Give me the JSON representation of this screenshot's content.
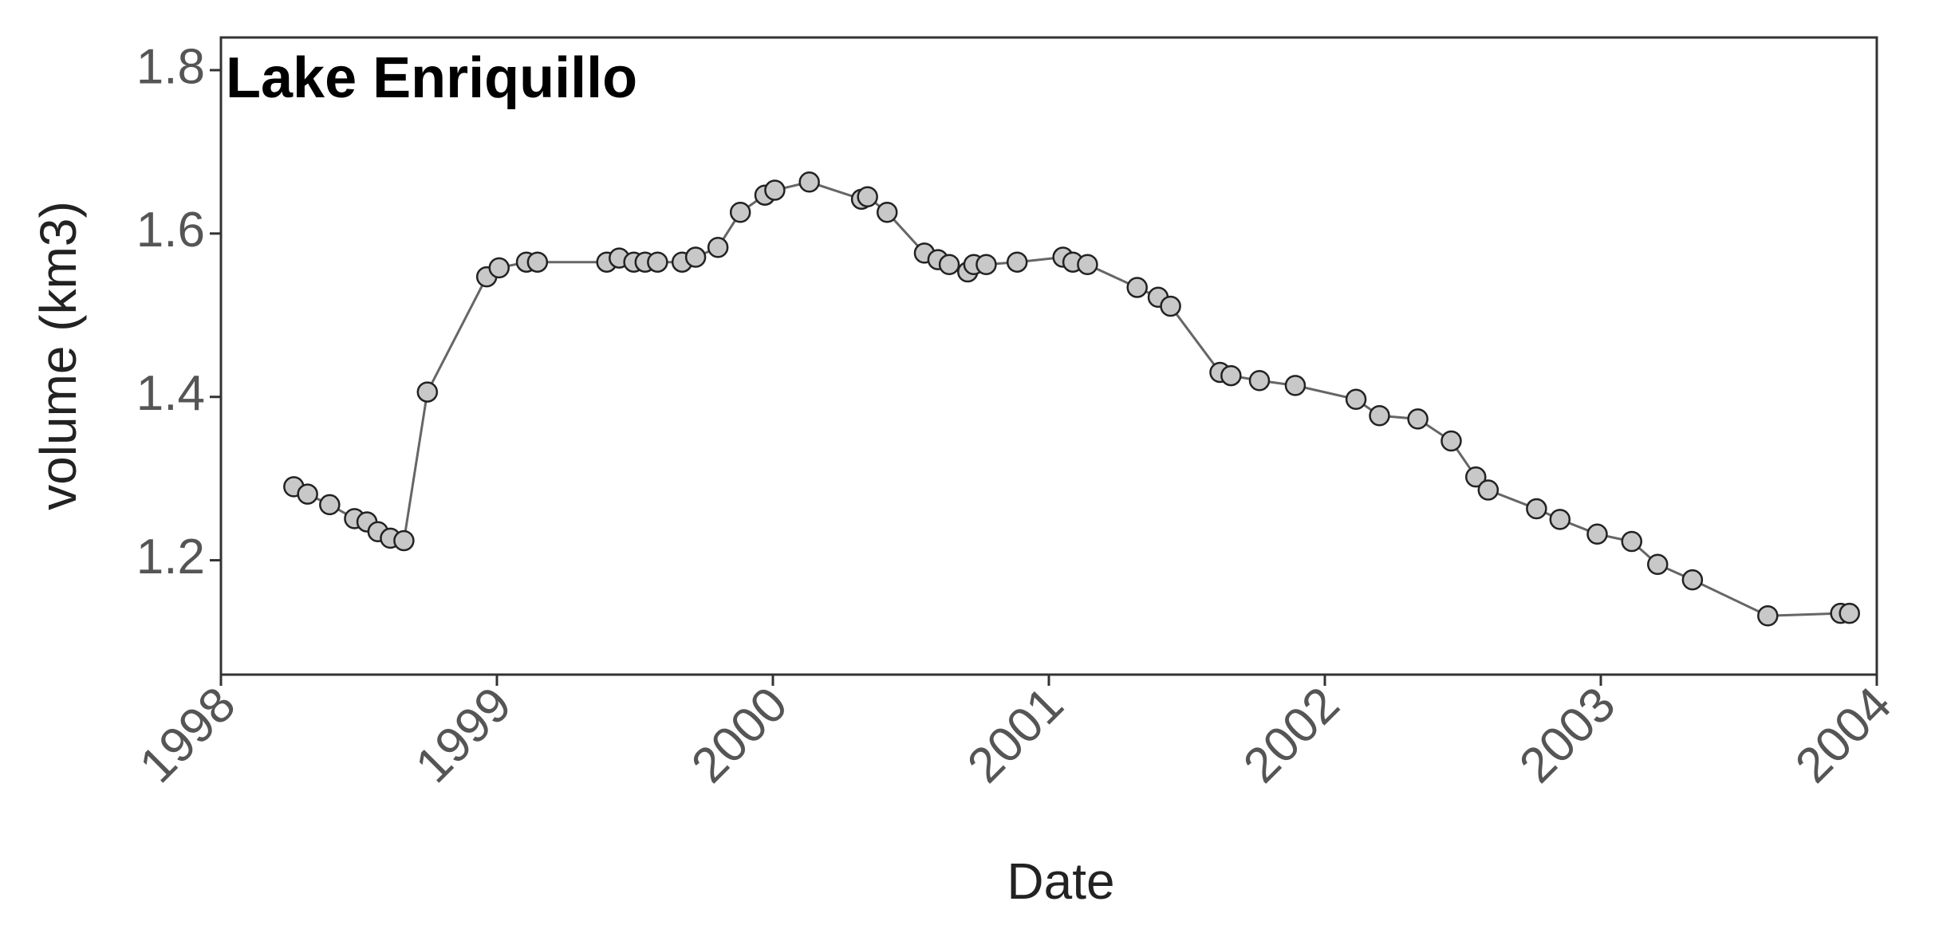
{
  "chart_data": {
    "type": "line",
    "title": "Lake Enriquillo",
    "xlabel": "Date",
    "ylabel": "volume (km3)",
    "x": [
      1998.264,
      1998.314,
      1998.394,
      1998.484,
      1998.529,
      1998.569,
      1998.614,
      1998.663,
      1998.748,
      1998.963,
      1999.008,
      1999.107,
      1999.147,
      1999.398,
      1999.443,
      1999.496,
      1999.537,
      1999.582,
      1999.671,
      1999.72,
      1999.801,
      1999.882,
      1999.971,
      2000.007,
      2000.132,
      2000.321,
      2000.343,
      2000.414,
      2000.549,
      2000.598,
      2000.639,
      2000.706,
      2000.728,
      2000.773,
      2000.885,
      2001.051,
      2001.087,
      2001.14,
      2001.32,
      2001.396,
      2001.441,
      2001.62,
      2001.66,
      2001.763,
      2001.893,
      2002.113,
      2002.198,
      2002.337,
      2002.458,
      2002.547,
      2002.592,
      2002.767,
      2002.852,
      2002.987,
      2003.112,
      2003.206,
      2003.332,
      2003.605,
      2003.869,
      2003.901
    ],
    "series": [
      {
        "name": "volume",
        "color": "#666666",
        "marker_color": "#c8c8c8",
        "values": [
          1.29,
          1.281,
          1.268,
          1.251,
          1.247,
          1.235,
          1.227,
          1.224,
          1.406,
          1.547,
          1.558,
          1.565,
          1.565,
          1.565,
          1.57,
          1.565,
          1.565,
          1.565,
          1.565,
          1.571,
          1.583,
          1.626,
          1.647,
          1.653,
          1.663,
          1.642,
          1.645,
          1.626,
          1.576,
          1.568,
          1.562,
          1.553,
          1.562,
          1.562,
          1.565,
          1.571,
          1.565,
          1.562,
          1.534,
          1.522,
          1.511,
          1.43,
          1.426,
          1.42,
          1.414,
          1.397,
          1.377,
          1.373,
          1.346,
          1.302,
          1.286,
          1.263,
          1.25,
          1.232,
          1.223,
          1.195,
          1.176,
          1.132,
          1.135,
          1.135
        ]
      }
    ],
    "xlim": [
      1998,
      2004
    ],
    "xticks": [
      1998,
      1999,
      2000,
      2001,
      2002,
      2003,
      2004
    ],
    "ylim": [
      1.06,
      1.84
    ],
    "yticks": [
      1.2,
      1.4,
      1.6,
      1.8
    ],
    "grid": false
  }
}
